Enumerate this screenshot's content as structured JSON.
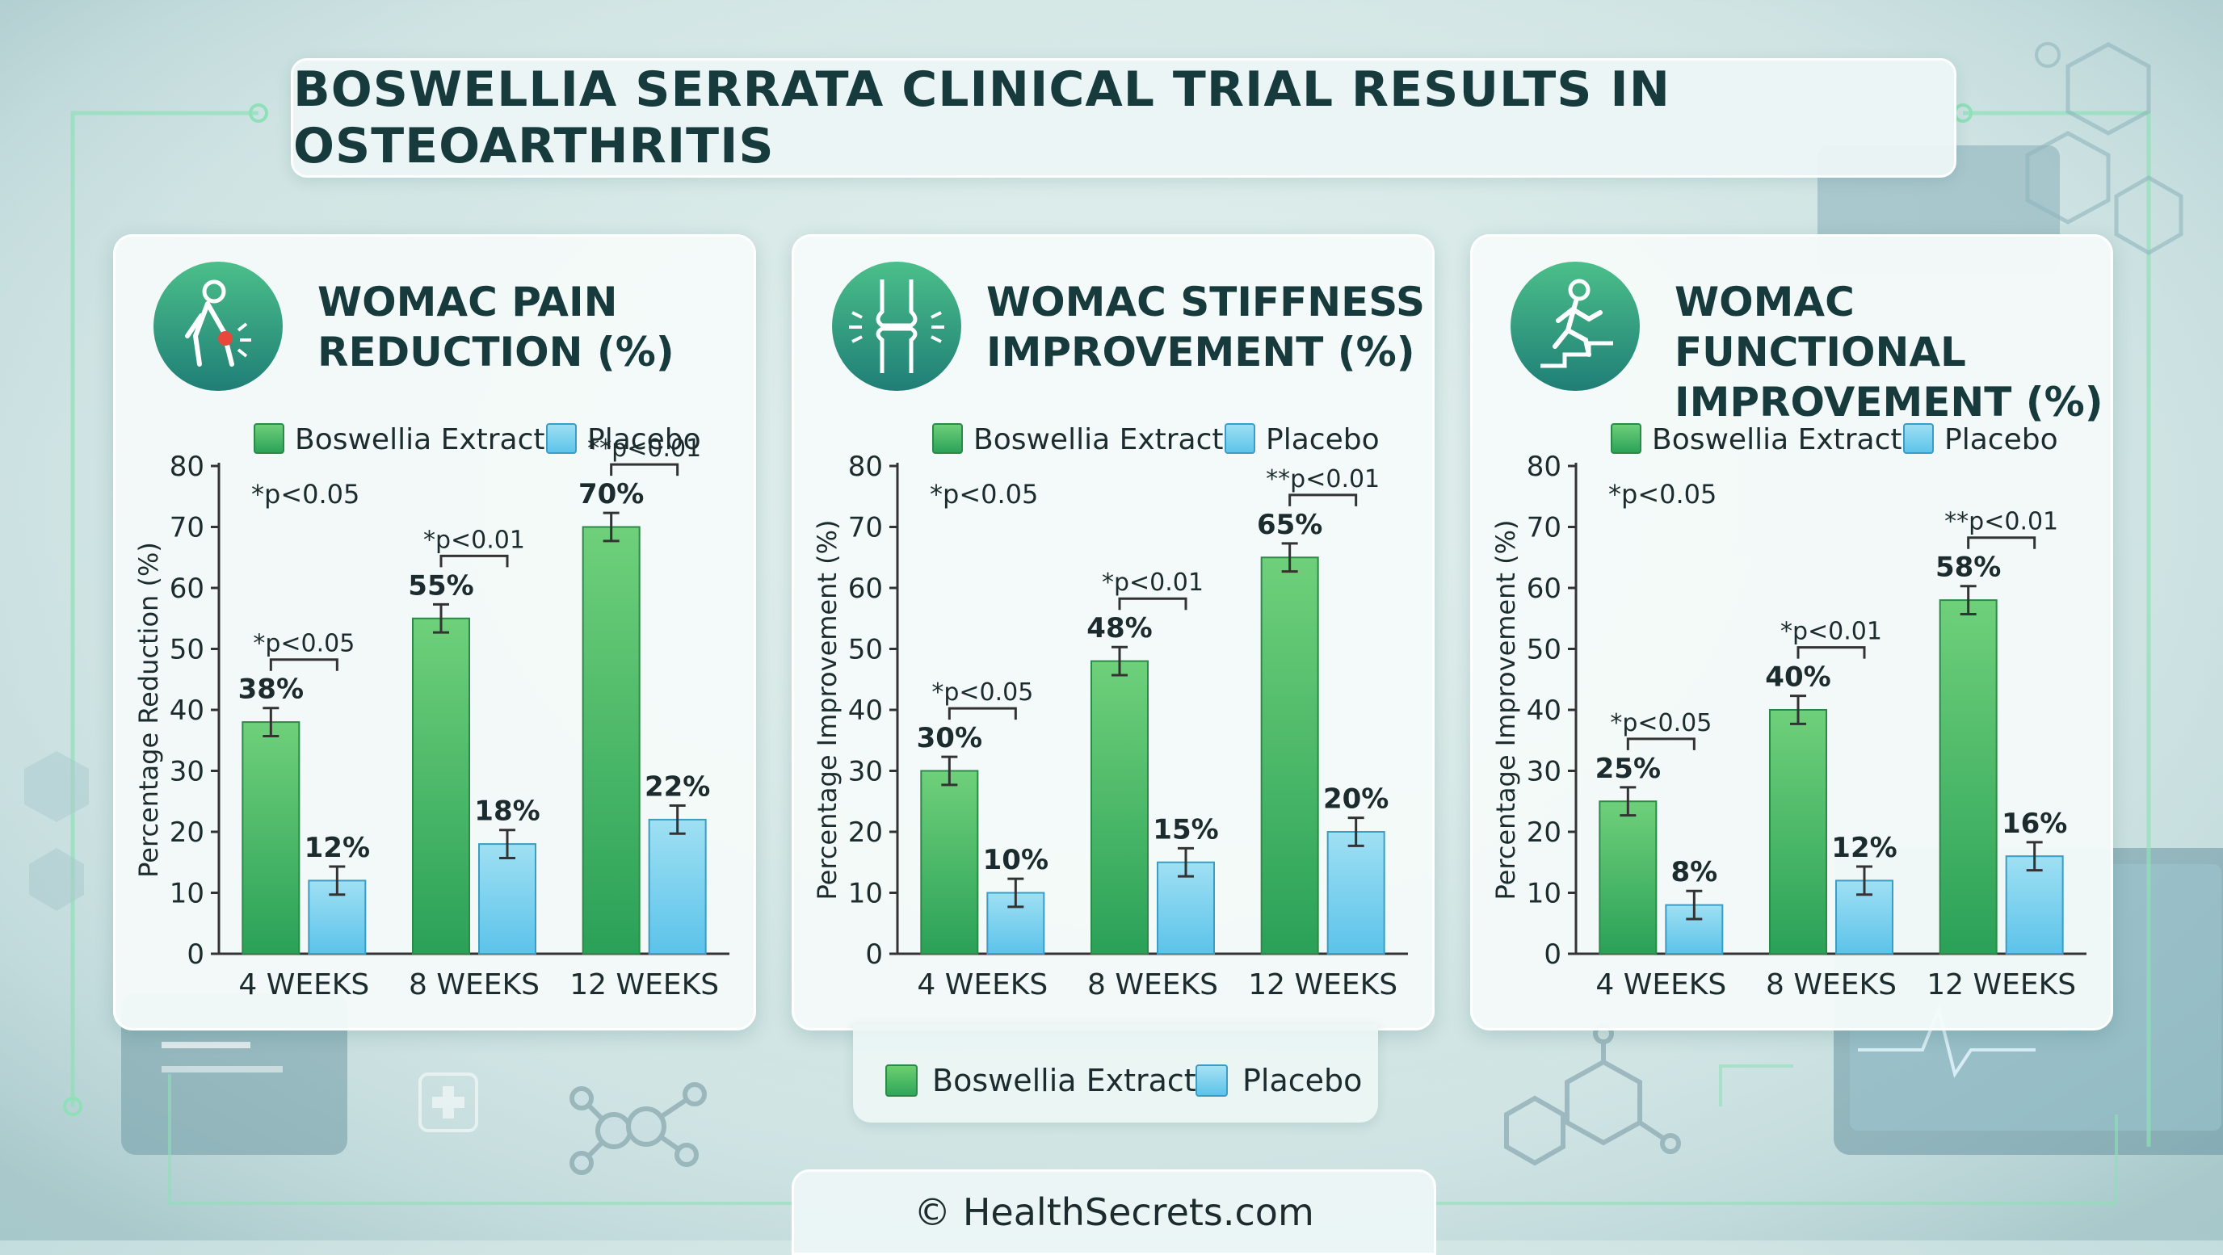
{
  "page": {
    "title": "BOSWELLIA SERRATA CLINICAL TRIAL RESULTS IN OSTEOARTHRITIS"
  },
  "colors": {
    "boswellia": "#3db55f",
    "placebo": "#7dd3ef",
    "title_text": "#173a3c",
    "accent_line": "#8fe0b8"
  },
  "icons": [
    "knee-pain-person-icon",
    "knee-joint-icon",
    "person-climbing-stairs-icon",
    "plus-cross-icon",
    "molecule-icon",
    "hexagon-molecule-icon"
  ],
  "legend": {
    "boswellia": "Boswellia Extract",
    "placebo": "Placebo"
  },
  "bottom_legend": {
    "boswellia": "Boswellia Extract",
    "placebo": "Placebo"
  },
  "footer": {
    "copyright": "© HealthSecrets.com"
  },
  "chart_data": [
    {
      "type": "bar",
      "title": "WOMAC PAIN\nREDUCTION (%)",
      "ylabel": "Percentage Reduction (%)",
      "ylim": [
        0,
        80
      ],
      "yticks": [
        0,
        10,
        20,
        30,
        40,
        50,
        60,
        70,
        80
      ],
      "categories": [
        "4 WEEKS",
        "8 WEEKS",
        "12 WEEKS"
      ],
      "series": [
        {
          "name": "Boswellia Extract",
          "values": [
            38,
            55,
            70
          ],
          "labels": [
            "38%",
            "55%",
            "70%"
          ]
        },
        {
          "name": "Placebo",
          "values": [
            12,
            18,
            22
          ],
          "labels": [
            "12%",
            "18%",
            "22%"
          ]
        }
      ],
      "general_note": "*p<0.05",
      "significance": [
        "*p<0.05",
        "*p<0.01",
        "**p<0.01"
      ],
      "legend_position": "top"
    },
    {
      "type": "bar",
      "title": "WOMAC STIFFNESS\nIMPROVEMENT (%)",
      "ylabel": "Percentage Improvement (%)",
      "ylim": [
        0,
        80
      ],
      "yticks": [
        0,
        10,
        20,
        30,
        40,
        50,
        60,
        70,
        80
      ],
      "categories": [
        "4 WEEKS",
        "8 WEEKS",
        "12 WEEKS"
      ],
      "series": [
        {
          "name": "Boswellia Extract",
          "values": [
            30,
            48,
            65
          ],
          "labels": [
            "30%",
            "48%",
            "65%"
          ]
        },
        {
          "name": "Placebo",
          "values": [
            10,
            15,
            20
          ],
          "labels": [
            "10%",
            "15%",
            "20%"
          ]
        }
      ],
      "general_note": "*p<0.05",
      "significance": [
        "*p<0.05",
        "*p<0.01",
        "**p<0.01"
      ],
      "legend_position": "top"
    },
    {
      "type": "bar",
      "title": "WOMAC FUNCTIONAL\nIMPROVEMENT (%)",
      "ylabel": "Percentage Improvement (%)",
      "ylim": [
        0,
        80
      ],
      "yticks": [
        0,
        10,
        20,
        30,
        40,
        50,
        60,
        70,
        80
      ],
      "categories": [
        "4 WEEKS",
        "8 WEEKS",
        "12 WEEKS"
      ],
      "series": [
        {
          "name": "Boswellia Extract",
          "values": [
            25,
            40,
            58
          ],
          "labels": [
            "25%",
            "40%",
            "58%"
          ]
        },
        {
          "name": "Placebo",
          "values": [
            8,
            12,
            16
          ],
          "labels": [
            "8%",
            "12%",
            "16%"
          ]
        }
      ],
      "general_note": "*p<0.05",
      "significance": [
        "*p<0.05",
        "*p<0.01",
        "**p<0.01"
      ],
      "legend_position": "top"
    }
  ]
}
